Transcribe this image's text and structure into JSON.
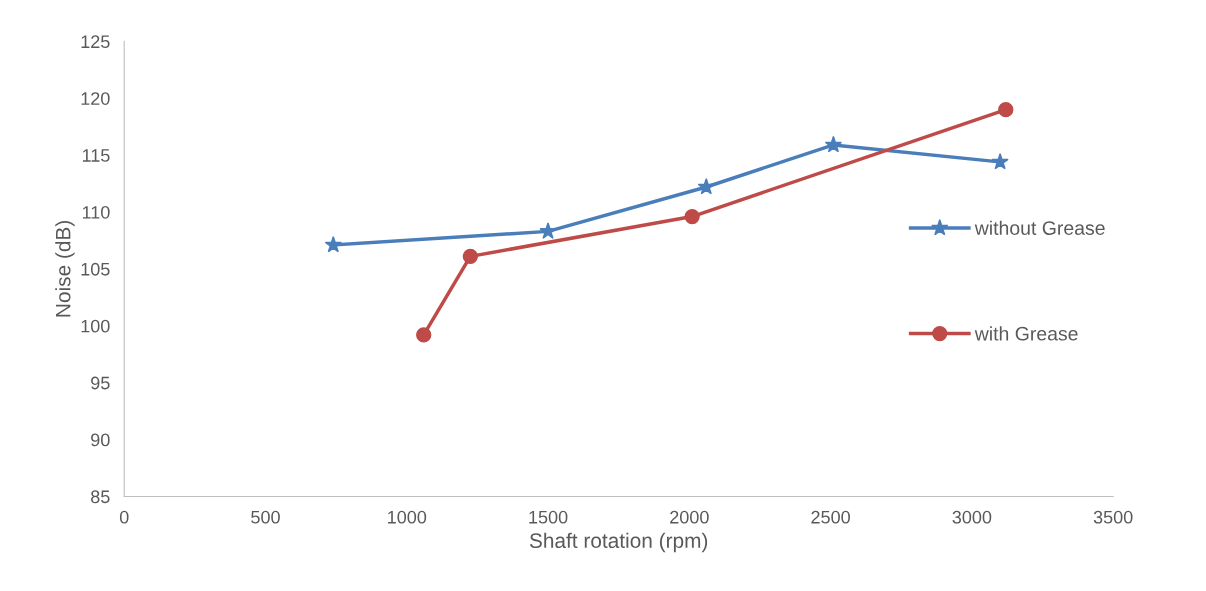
{
  "chart_data": {
    "type": "line",
    "xlabel": "Shaft rotation (rpm)",
    "ylabel": "Noise (dB)",
    "xlim": [
      0,
      3500
    ],
    "xticks": [
      0,
      500,
      1000,
      1500,
      2000,
      2500,
      3000,
      3500
    ],
    "ylim": [
      85,
      125
    ],
    "yticks": [
      85,
      90,
      95,
      100,
      105,
      110,
      115,
      120,
      125
    ],
    "grid": false,
    "legend": "right",
    "series": [
      {
        "name": "without Grease",
        "color": "#4a7ebb",
        "marker": "star",
        "x": [
          740,
          1500,
          2060,
          2510,
          3100
        ],
        "values": [
          107.1,
          108.3,
          112.2,
          115.9,
          114.4
        ]
      },
      {
        "name": "with Grease",
        "color": "#be4b48",
        "marker": "circle",
        "x": [
          1060,
          1225,
          2010,
          3120
        ],
        "values": [
          99.2,
          106.1,
          109.6,
          119.0
        ]
      }
    ]
  }
}
